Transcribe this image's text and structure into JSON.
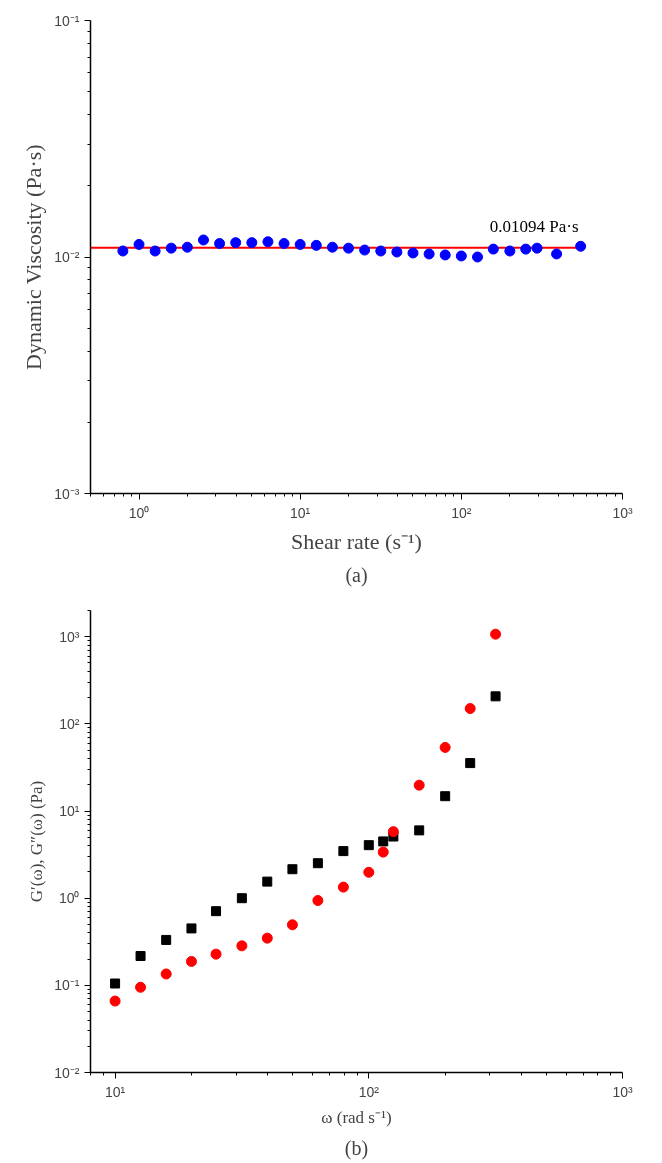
{
  "chart_data": [
    {
      "type": "scatter",
      "title": "(a)",
      "xlabel": "Shear rate (s⁻¹)",
      "ylabel": "Dynamic Viscosity (Pa·s)",
      "log": "xy",
      "xlim": [
        0.5,
        1000
      ],
      "ylim": [
        0.001,
        0.1
      ],
      "xticks": [
        {
          "value": 1,
          "label": "10⁰"
        },
        {
          "value": 10,
          "label": "10¹"
        },
        {
          "value": 100,
          "label": "10²"
        },
        {
          "value": 1000,
          "label": "10³"
        }
      ],
      "yticks": [
        {
          "value": 0.001,
          "label": "10⁻³"
        },
        {
          "value": 0.01,
          "label": "10⁻²"
        },
        {
          "value": 0.1,
          "label": "10⁻¹"
        }
      ],
      "annotations": [
        {
          "text": "0.01094 Pa·s",
          "x": 150,
          "y": 0.01094
        }
      ],
      "series": [
        {
          "type": "line",
          "color": "#ff0000",
          "line_style": "solid",
          "marker": "none",
          "x": [
            0.5,
            580
          ],
          "values": [
            0.01094,
            0.01094
          ]
        },
        {
          "type": "scatter",
          "color": "#0000ff",
          "marker": "circle",
          "x": [
            0.794,
            1,
            1.259,
            1.585,
            1.995,
            2.512,
            3.162,
            3.981,
            5.012,
            6.31,
            7.943,
            10,
            12.59,
            15.85,
            19.95,
            25.12,
            31.62,
            39.81,
            50.12,
            63.1,
            79.43,
            100,
            126,
            158,
            200,
            251,
            295,
            390,
            550
          ],
          "values": [
            0.0106,
            0.0113,
            0.0106,
            0.0109,
            0.011,
            0.0118,
            0.0114,
            0.0115,
            0.0115,
            0.0116,
            0.0114,
            0.0113,
            0.0112,
            0.011,
            0.0109,
            0.0107,
            0.0106,
            0.0105,
            0.0104,
            0.0103,
            0.0102,
            0.0101,
            0.01,
            0.0108,
            0.0106,
            0.0108,
            0.0109,
            0.0103,
            0.0111
          ]
        }
      ]
    },
    {
      "type": "scatter",
      "title": "(b)",
      "xlabel": "ω (rad s⁻¹)",
      "ylabel": "G′(ω), G″(ω) (Pa)",
      "log": "xy",
      "xlim": [
        8,
        1000
      ],
      "ylim": [
        0.01,
        2000
      ],
      "xticks": [
        {
          "value": 10,
          "label": "10¹"
        },
        {
          "value": 100,
          "label": "10²"
        },
        {
          "value": 1000,
          "label": "10³"
        }
      ],
      "yticks": [
        {
          "value": 0.01,
          "label": "10⁻²"
        },
        {
          "value": 0.1,
          "label": "10⁻¹"
        },
        {
          "value": 1,
          "label": "10⁰"
        },
        {
          "value": 10,
          "label": "10¹"
        },
        {
          "value": 100,
          "label": "10²"
        },
        {
          "value": 1000,
          "label": "10³"
        }
      ],
      "series": [
        {
          "type": "scatter",
          "color": "#000000",
          "marker": "square",
          "x": [
            10,
            12.6,
            15.9,
            20,
            25,
            31.6,
            39.8,
            50,
            63,
            79.4,
            100,
            114,
            125,
            158,
            200,
            251,
            316
          ],
          "values": [
            0.105,
            0.217,
            0.332,
            0.45,
            0.71,
            1.0,
            1.55,
            2.15,
            2.52,
            3.47,
            4.06,
            4.48,
            5.1,
            6.0,
            14.8,
            35.5,
            207
          ]
        },
        {
          "type": "scatter",
          "color": "#ff0000",
          "marker": "circle",
          "x": [
            10,
            12.6,
            15.9,
            20,
            25,
            31.6,
            39.8,
            50,
            63,
            79.4,
            100,
            114,
            125,
            158,
            200,
            251,
            316
          ],
          "values": [
            0.066,
            0.095,
            0.135,
            0.188,
            0.228,
            0.284,
            0.348,
            0.495,
            0.94,
            1.34,
            1.98,
            3.38,
            5.8,
            19.8,
            53.7,
            150,
            1070
          ]
        }
      ]
    }
  ]
}
